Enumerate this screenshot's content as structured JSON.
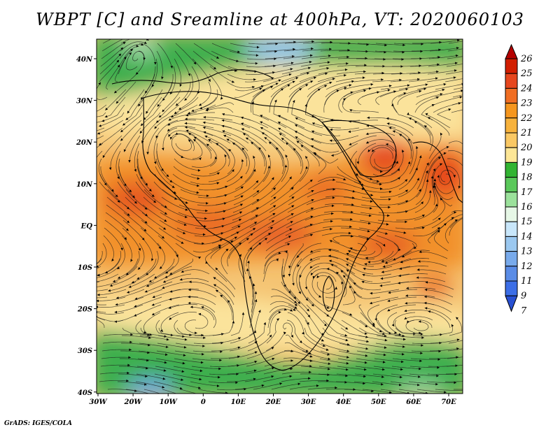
{
  "title": "WBPT [C] and Sreamline at 400hPa, VT: 2020060103",
  "credit": "GrADS: IGES/COLA",
  "map": {
    "lat_labels": [
      "40N",
      "30N",
      "20N",
      "10N",
      "EQ",
      "10S",
      "20S",
      "30S",
      "40S"
    ],
    "lon_labels": [
      "30W",
      "20W",
      "10W",
      "0",
      "10E",
      "20E",
      "30E",
      "40E",
      "50E",
      "60E",
      "70E"
    ]
  },
  "colorbar": {
    "labels": [
      "26",
      "25",
      "24",
      "23",
      "22",
      "21",
      "20",
      "19",
      "18",
      "17",
      "16",
      "15",
      "14",
      "13",
      "12",
      "11",
      "9",
      "7"
    ],
    "colors": [
      "#b40000",
      "#d21e00",
      "#e6461e",
      "#f06e23",
      "#f5961e",
      "#f7b23c",
      "#fac864",
      "#fde696",
      "#32b432",
      "#5ac85a",
      "#9be19b",
      "#e6f7e6",
      "#c8e6fa",
      "#9bc8f0",
      "#78aaeb",
      "#5a8ce6",
      "#3c6ee6",
      "#2850d2"
    ]
  }
}
